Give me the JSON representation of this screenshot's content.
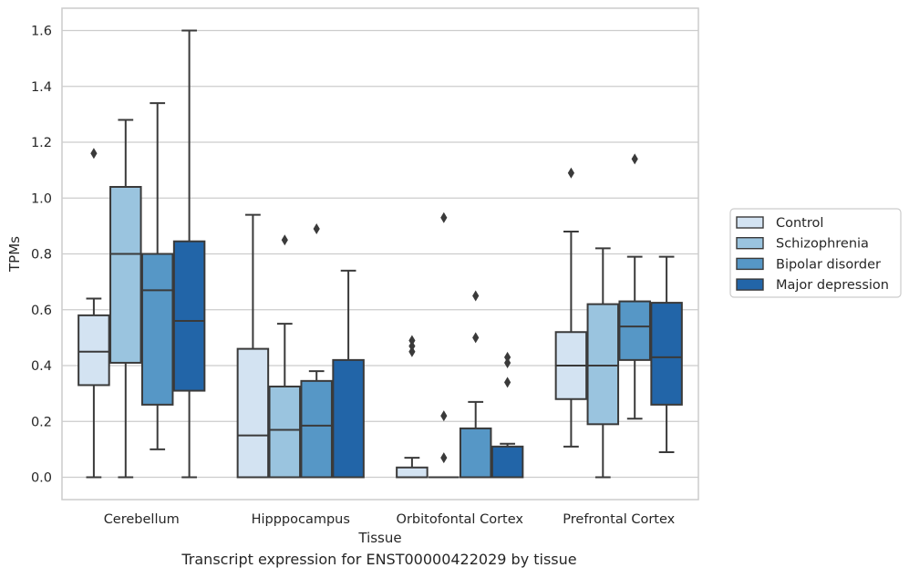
{
  "chart_data": {
    "type": "box",
    "xlabel": "Tissue",
    "ylabel": "TPMs",
    "ylim": [
      -0.08,
      1.68
    ],
    "yticks": [
      0.0,
      0.2,
      0.4,
      0.6,
      0.8,
      1.0,
      1.2,
      1.4,
      1.6
    ],
    "ytick_labels": [
      "0.0",
      "0.2",
      "0.4",
      "0.6",
      "0.8",
      "1.0",
      "1.2",
      "1.4",
      "1.6"
    ],
    "categories": [
      "Cerebellum",
      "Hipppocampus",
      "Orbitofontal Cortex",
      "Prefrontal Cortex"
    ],
    "grid": "horizontal",
    "legend_position": "right-outside",
    "series": [
      {
        "name": "Control",
        "color": "#d3e3f2",
        "boxes": [
          {
            "whislo": 0.0,
            "q1": 0.33,
            "med": 0.45,
            "q3": 0.58,
            "whishi": 0.64,
            "fliers": [
              1.16
            ]
          },
          {
            "whislo": 0.0,
            "q1": 0.0,
            "med": 0.15,
            "q3": 0.46,
            "whishi": 0.94,
            "fliers": []
          },
          {
            "whislo": 0.0,
            "q1": 0.0,
            "med": 0.0,
            "q3": 0.035,
            "whishi": 0.07,
            "fliers": [
              0.45,
              0.47,
              0.49
            ]
          },
          {
            "whislo": 0.11,
            "q1": 0.28,
            "med": 0.4,
            "q3": 0.52,
            "whishi": 0.88,
            "fliers": [
              1.09
            ]
          }
        ]
      },
      {
        "name": "Schizophrenia",
        "color": "#9ac4df",
        "boxes": [
          {
            "whislo": 0.0,
            "q1": 0.41,
            "med": 0.8,
            "q3": 1.04,
            "whishi": 1.28,
            "fliers": []
          },
          {
            "whislo": 0.0,
            "q1": 0.0,
            "med": 0.17,
            "q3": 0.325,
            "whishi": 0.55,
            "fliers": [
              0.85
            ]
          },
          {
            "whislo": 0.0,
            "q1": 0.0,
            "med": 0.0,
            "q3": 0.0,
            "whishi": 0.0,
            "fliers": [
              0.07,
              0.22,
              0.93
            ]
          },
          {
            "whislo": 0.0,
            "q1": 0.19,
            "med": 0.4,
            "q3": 0.62,
            "whishi": 0.82,
            "fliers": []
          }
        ]
      },
      {
        "name": "Bipolar disorder",
        "color": "#5697c6",
        "boxes": [
          {
            "whislo": 0.1,
            "q1": 0.26,
            "med": 0.67,
            "q3": 0.8,
            "whishi": 1.34,
            "fliers": []
          },
          {
            "whislo": 0.0,
            "q1": 0.0,
            "med": 0.185,
            "q3": 0.345,
            "whishi": 0.38,
            "fliers": [
              0.89
            ]
          },
          {
            "whislo": 0.0,
            "q1": 0.0,
            "med": 0.0,
            "q3": 0.175,
            "whishi": 0.27,
            "fliers": [
              0.5,
              0.65
            ]
          },
          {
            "whislo": 0.21,
            "q1": 0.42,
            "med": 0.54,
            "q3": 0.63,
            "whishi": 0.79,
            "fliers": [
              1.14
            ]
          }
        ]
      },
      {
        "name": "Major depression",
        "color": "#2265a8",
        "boxes": [
          {
            "whislo": 0.0,
            "q1": 0.31,
            "med": 0.56,
            "q3": 0.845,
            "whishi": 1.6,
            "fliers": []
          },
          {
            "whislo": 0.0,
            "q1": 0.0,
            "med": 0.0,
            "q3": 0.42,
            "whishi": 0.74,
            "fliers": []
          },
          {
            "whislo": 0.0,
            "q1": 0.0,
            "med": 0.0,
            "q3": 0.11,
            "whishi": 0.12,
            "fliers": [
              0.34,
              0.41,
              0.43
            ]
          },
          {
            "whislo": 0.09,
            "q1": 0.26,
            "med": 0.43,
            "q3": 0.625,
            "whishi": 0.79,
            "fliers": []
          }
        ]
      }
    ],
    "caption": "Transcript expression for ENST00000422029 by tissue"
  }
}
